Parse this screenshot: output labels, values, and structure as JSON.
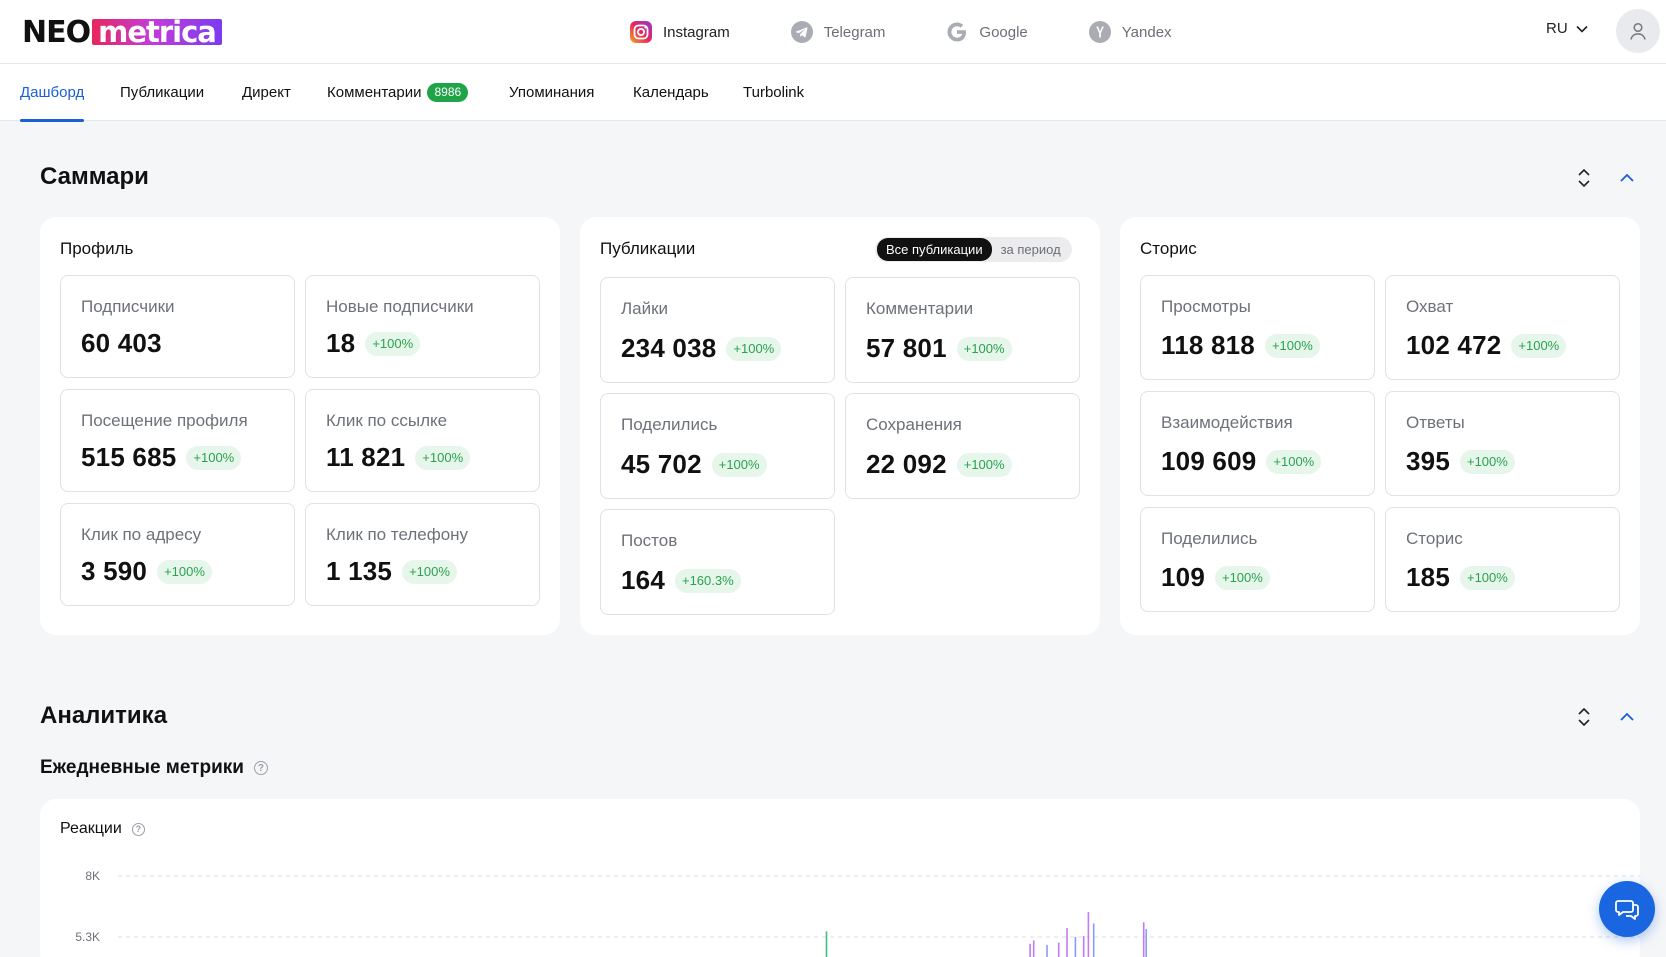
{
  "logo": {
    "part1": "NEO",
    "part2": "metrica"
  },
  "platforms": [
    {
      "label": "Instagram",
      "icon": "instagram-icon"
    },
    {
      "label": "Telegram",
      "icon": "telegram-icon"
    },
    {
      "label": "Google",
      "icon": "google-icon"
    },
    {
      "label": "Yandex",
      "icon": "yandex-icon"
    }
  ],
  "header": {
    "lang": "RU"
  },
  "tabs": [
    {
      "label": "Дашборд"
    },
    {
      "label": "Публикации"
    },
    {
      "label": "Директ"
    },
    {
      "label": "Комментарии",
      "count": "8986"
    },
    {
      "label": "Упоминания"
    },
    {
      "label": "Календарь"
    },
    {
      "label": "Turbolink"
    }
  ],
  "summary": {
    "title": "Саммари",
    "profile": {
      "title": "Профиль",
      "metrics": [
        {
          "label": "Подписчики",
          "value": "60 403",
          "badge": ""
        },
        {
          "label": "Новые подписчики",
          "value": "18",
          "badge": "+100%"
        },
        {
          "label": "Посещение профиля",
          "value": "515 685",
          "badge": "+100%"
        },
        {
          "label": "Клик по ссылке",
          "value": "11 821",
          "badge": "+100%"
        },
        {
          "label": "Клик по адресу",
          "value": "3 590",
          "badge": "+100%"
        },
        {
          "label": "Клик по телефону",
          "value": "1 135",
          "badge": "+100%"
        }
      ]
    },
    "publications": {
      "title": "Публикации",
      "toggle": {
        "all": "Все публикации",
        "period": "за период"
      },
      "metrics": [
        {
          "label": "Лайки",
          "value": "234 038",
          "badge": "+100%"
        },
        {
          "label": "Комментарии",
          "value": "57 801",
          "badge": "+100%"
        },
        {
          "label": "Поделились",
          "value": "45 702",
          "badge": "+100%"
        },
        {
          "label": "Сохранения",
          "value": "22 092",
          "badge": "+100%"
        },
        {
          "label": "Постов",
          "value": "164",
          "badge": "+160.3%"
        }
      ]
    },
    "stories": {
      "title": "Сторис",
      "metrics": [
        {
          "label": "Просмотры",
          "value": "118 818",
          "badge": "+100%"
        },
        {
          "label": "Охват",
          "value": "102 472",
          "badge": "+100%"
        },
        {
          "label": "Взаимодействия",
          "value": "109 609",
          "badge": "+100%"
        },
        {
          "label": "Ответы",
          "value": "395",
          "badge": "+100%"
        },
        {
          "label": "Поделились",
          "value": "109",
          "badge": "+100%"
        },
        {
          "label": "Сторис",
          "value": "185",
          "badge": "+100%"
        }
      ]
    }
  },
  "analytics": {
    "title": "Аналитика",
    "subtitle": "Ежедневные метрики",
    "help_symbol": "?",
    "chart_title": "Реакции"
  },
  "chart_data": {
    "type": "bar",
    "title": "Реакции",
    "yticks": [
      "8K",
      "5.3K"
    ],
    "grid": true,
    "bars": [
      {
        "x": 0.4956,
        "value": 5550,
        "color": "#3fbf7f"
      },
      {
        "x": 0.6178,
        "value": 5000,
        "color": "#c27bf0"
      },
      {
        "x": 0.62,
        "value": 5150,
        "color": "#c27bf0"
      },
      {
        "x": 0.628,
        "value": 4950,
        "color": "#8a9bf5"
      },
      {
        "x": 0.635,
        "value": 5050,
        "color": "#c27bf0"
      },
      {
        "x": 0.64,
        "value": 5700,
        "color": "#c27bf0"
      },
      {
        "x": 0.645,
        "value": 5300,
        "color": "#8a9bf5"
      },
      {
        "x": 0.65,
        "value": 5350,
        "color": "#c27bf0"
      },
      {
        "x": 0.6528,
        "value": 6400,
        "color": "#c27bf0"
      },
      {
        "x": 0.656,
        "value": 5900,
        "color": "#8a9bf5"
      },
      {
        "x": 0.686,
        "value": 5950,
        "color": "#c27bf0"
      },
      {
        "x": 0.6875,
        "value": 5650,
        "color": "#8a9bf5"
      }
    ],
    "ylim": [
      0,
      8000
    ]
  },
  "colors": {
    "accent": "#1a5fd6",
    "badge_text": "#2aa24f",
    "badge_bg": "#e6f6ea",
    "comment_count_bg": "#1fa548"
  }
}
